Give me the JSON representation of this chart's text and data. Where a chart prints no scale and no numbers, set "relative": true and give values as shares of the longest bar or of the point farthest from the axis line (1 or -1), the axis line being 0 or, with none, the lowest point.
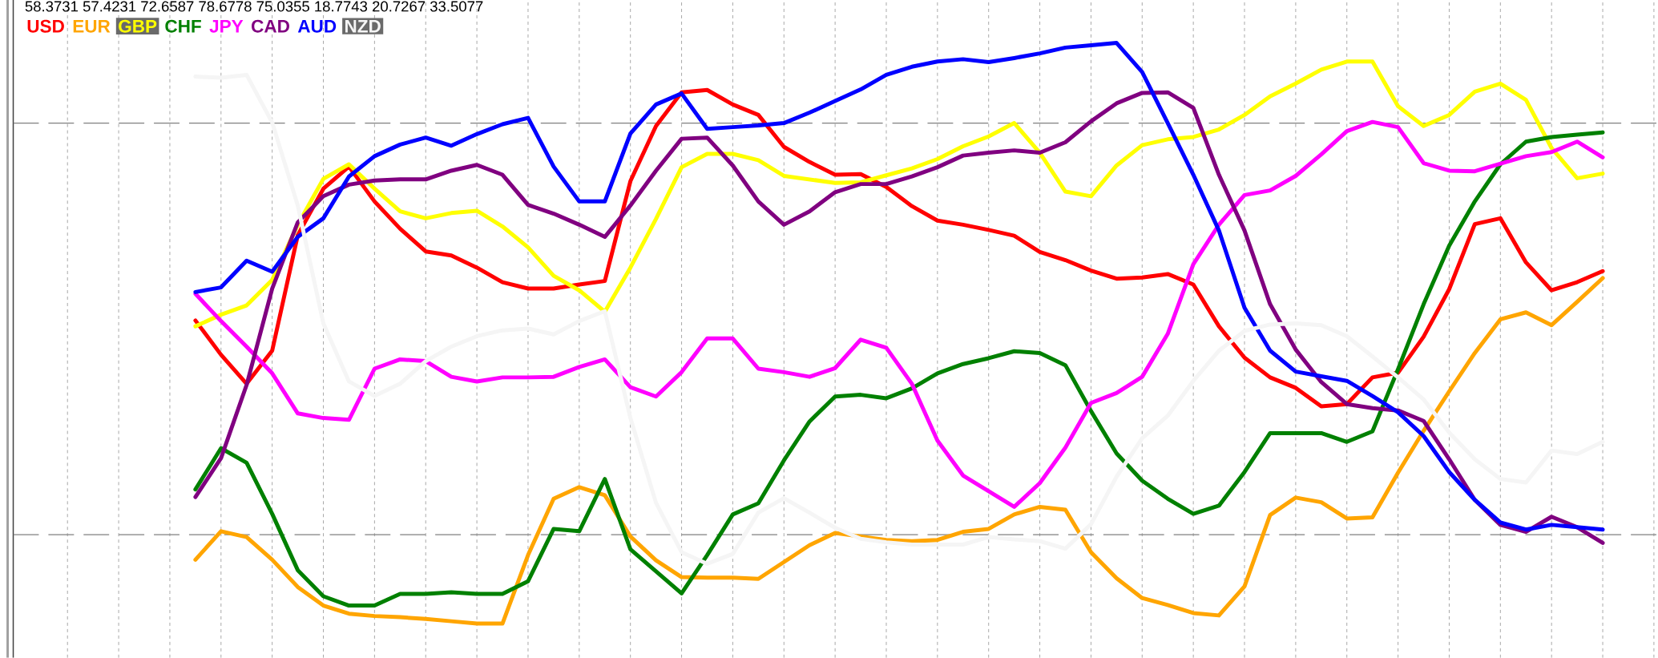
{
  "chart_data": {
    "type": "line",
    "relative": true,
    "annotations": [
      "58.3731 57.4231 72.6587 78.6778 75.0355 18.7743 20.7267 33.5077"
    ],
    "categories": [
      null,
      null,
      null,
      null,
      null,
      null,
      null,
      null,
      null,
      null,
      null,
      null,
      null,
      null,
      null,
      null,
      null,
      null,
      null,
      null,
      null,
      null,
      null,
      null,
      null,
      null,
      null,
      null,
      null,
      null,
      null,
      null,
      null,
      null,
      null,
      null,
      null,
      null,
      null,
      null,
      null,
      null,
      null,
      null,
      null,
      null,
      null,
      null,
      null,
      null,
      null,
      null,
      null,
      null,
      null,
      null
    ],
    "grid": "x",
    "legend": "top left",
    "ref_lines": [
      {
        "axis": "y",
        "value": 0.862,
        "color": "#808080",
        "line_style": "dashed"
      },
      {
        "axis": "y",
        "value": 0.153,
        "color": "#808080",
        "line_style": "dashed"
      }
    ],
    "series": [
      {
        "name": "USD",
        "color": "#ff0000",
        "values": [
          0.522,
          0.463,
          0.413,
          0.47,
          0.669,
          0.749,
          0.787,
          0.727,
          0.68,
          0.641,
          0.634,
          0.613,
          0.588,
          0.577,
          0.577,
          0.584,
          0.59,
          0.762,
          0.857,
          0.915,
          0.919,
          0.894,
          0.876,
          0.821,
          0.795,
          0.773,
          0.774,
          0.752,
          0.719,
          0.694,
          0.687,
          0.678,
          0.668,
          0.64,
          0.626,
          0.608,
          0.594,
          0.596,
          0.602,
          0.584,
          0.512,
          0.458,
          0.424,
          0.406,
          0.374,
          0.378,
          0.424,
          0.432,
          0.494,
          0.576,
          0.688,
          0.698,
          0.622,
          0.574,
          0.588,
          0.607
        ]
      },
      {
        "name": "EUR",
        "color": "#ffa500",
        "values": [
          0.11,
          0.159,
          0.149,
          0.11,
          0.063,
          0.031,
          0.017,
          0.013,
          0.011,
          0.008,
          0.004,
          0,
          0,
          0.118,
          0.215,
          0.235,
          0.221,
          0.15,
          0.109,
          0.08,
          0.079,
          0.079,
          0.077,
          0.106,
          0.135,
          0.156,
          0.15,
          0.144,
          0.142,
          0.144,
          0.158,
          0.163,
          0.188,
          0.201,
          0.196,
          0.123,
          0.078,
          0.044,
          0.032,
          0.018,
          0.014,
          0.064,
          0.187,
          0.217,
          0.209,
          0.181,
          0.183,
          0.26,
          0.332,
          0.4,
          0.466,
          0.524,
          0.536,
          0.514,
          0.554,
          0.595
        ]
      },
      {
        "name": "GBP",
        "color": "#ffff00",
        "values": [
          0.512,
          0.532,
          0.548,
          0.592,
          0.687,
          0.766,
          0.791,
          0.749,
          0.71,
          0.698,
          0.707,
          0.711,
          0.684,
          0.648,
          0.599,
          0.574,
          0.537,
          0.613,
          0.697,
          0.786,
          0.809,
          0.809,
          0.798,
          0.771,
          0.765,
          0.759,
          0.76,
          0.772,
          0.784,
          0.8,
          0.822,
          0.839,
          0.862,
          0.811,
          0.744,
          0.736,
          0.789,
          0.824,
          0.834,
          0.838,
          0.851,
          0.876,
          0.908,
          0.93,
          0.954,
          0.968,
          0.968,
          0.891,
          0.857,
          0.876,
          0.916,
          0.93,
          0.902,
          0.819,
          0.767,
          0.775
        ]
      },
      {
        "name": "CHF",
        "color": "#008000",
        "values": [
          0.231,
          0.302,
          0.277,
          0.189,
          0.092,
          0.047,
          0.031,
          0.031,
          0.051,
          0.051,
          0.054,
          0.051,
          0.051,
          0.073,
          0.163,
          0.159,
          0.249,
          0.128,
          0.09,
          0.052,
          0.118,
          0.188,
          0.207,
          0.281,
          0.348,
          0.391,
          0.394,
          0.388,
          0.405,
          0.431,
          0.447,
          0.457,
          0.469,
          0.466,
          0.445,
          0.366,
          0.293,
          0.246,
          0.215,
          0.189,
          0.203,
          0.261,
          0.328,
          0.328,
          0.328,
          0.313,
          0.331,
          0.438,
          0.55,
          0.651,
          0.727,
          0.791,
          0.83,
          0.838,
          0.842,
          0.846
        ]
      },
      {
        "name": "JPY",
        "color": "#ff00ff",
        "values": [
          0.568,
          0.521,
          0.477,
          0.431,
          0.362,
          0.354,
          0.351,
          0.439,
          0.455,
          0.452,
          0.425,
          0.417,
          0.424,
          0.424,
          0.425,
          0.442,
          0.455,
          0.407,
          0.391,
          0.433,
          0.491,
          0.491,
          0.439,
          0.433,
          0.425,
          0.44,
          0.489,
          0.475,
          0.413,
          0.315,
          0.255,
          0.228,
          0.201,
          0.242,
          0.303,
          0.38,
          0.397,
          0.425,
          0.499,
          0.619,
          0.687,
          0.738,
          0.746,
          0.771,
          0.808,
          0.848,
          0.864,
          0.855,
          0.793,
          0.78,
          0.779,
          0.792,
          0.805,
          0.812,
          0.83,
          0.803
        ]
      },
      {
        "name": "CAD",
        "color": "#800080",
        "values": [
          0.218,
          0.285,
          0.411,
          0.577,
          0.691,
          0.736,
          0.756,
          0.763,
          0.765,
          0.765,
          0.78,
          0.79,
          0.773,
          0.721,
          0.706,
          0.687,
          0.666,
          0.72,
          0.78,
          0.835,
          0.837,
          0.789,
          0.727,
          0.687,
          0.71,
          0.743,
          0.757,
          0.757,
          0.77,
          0.786,
          0.806,
          0.811,
          0.815,
          0.811,
          0.829,
          0.865,
          0.896,
          0.914,
          0.915,
          0.888,
          0.773,
          0.677,
          0.55,
          0.472,
          0.416,
          0.378,
          0.371,
          0.367,
          0.349,
          0.283,
          0.213,
          0.17,
          0.158,
          0.184,
          0.166,
          0.139
        ]
      },
      {
        "name": "AUD",
        "color": "#0000ff",
        "values": [
          0.571,
          0.579,
          0.625,
          0.606,
          0.666,
          0.698,
          0.77,
          0.805,
          0.825,
          0.837,
          0.823,
          0.843,
          0.86,
          0.871,
          0.787,
          0.727,
          0.727,
          0.844,
          0.894,
          0.913,
          0.852,
          0.855,
          0.858,
          0.862,
          0.88,
          0.9,
          0.92,
          0.945,
          0.959,
          0.968,
          0.972,
          0.967,
          0.974,
          0.982,
          0.992,
          0.996,
          1,
          0.95,
          0.862,
          0.773,
          0.677,
          0.544,
          0.47,
          0.434,
          0.426,
          0.418,
          0.392,
          0.364,
          0.323,
          0.261,
          0.213,
          0.174,
          0.162,
          0.17,
          0.166,
          0.162
        ]
      },
      {
        "name": "NZD",
        "color": "#f5f5f5",
        "values": [
          0.942,
          0.94,
          0.945,
          0.863,
          0.72,
          0.517,
          0.417,
          0.392,
          0.413,
          0.452,
          0.477,
          0.495,
          0.505,
          0.508,
          0.498,
          0.521,
          0.538,
          0.354,
          0.208,
          0.123,
          0.103,
          0.12,
          0.191,
          0.216,
          0.191,
          0.165,
          0.146,
          0.14,
          0.136,
          0.136,
          0.136,
          0.149,
          0.145,
          0.142,
          0.129,
          0.171,
          0.253,
          0.319,
          0.358,
          0.418,
          0.47,
          0.504,
          0.515,
          0.517,
          0.514,
          0.495,
          0.46,
          0.424,
          0.386,
          0.329,
          0.283,
          0.249,
          0.243,
          0.298,
          0.292,
          0.313
        ]
      }
    ]
  }
}
